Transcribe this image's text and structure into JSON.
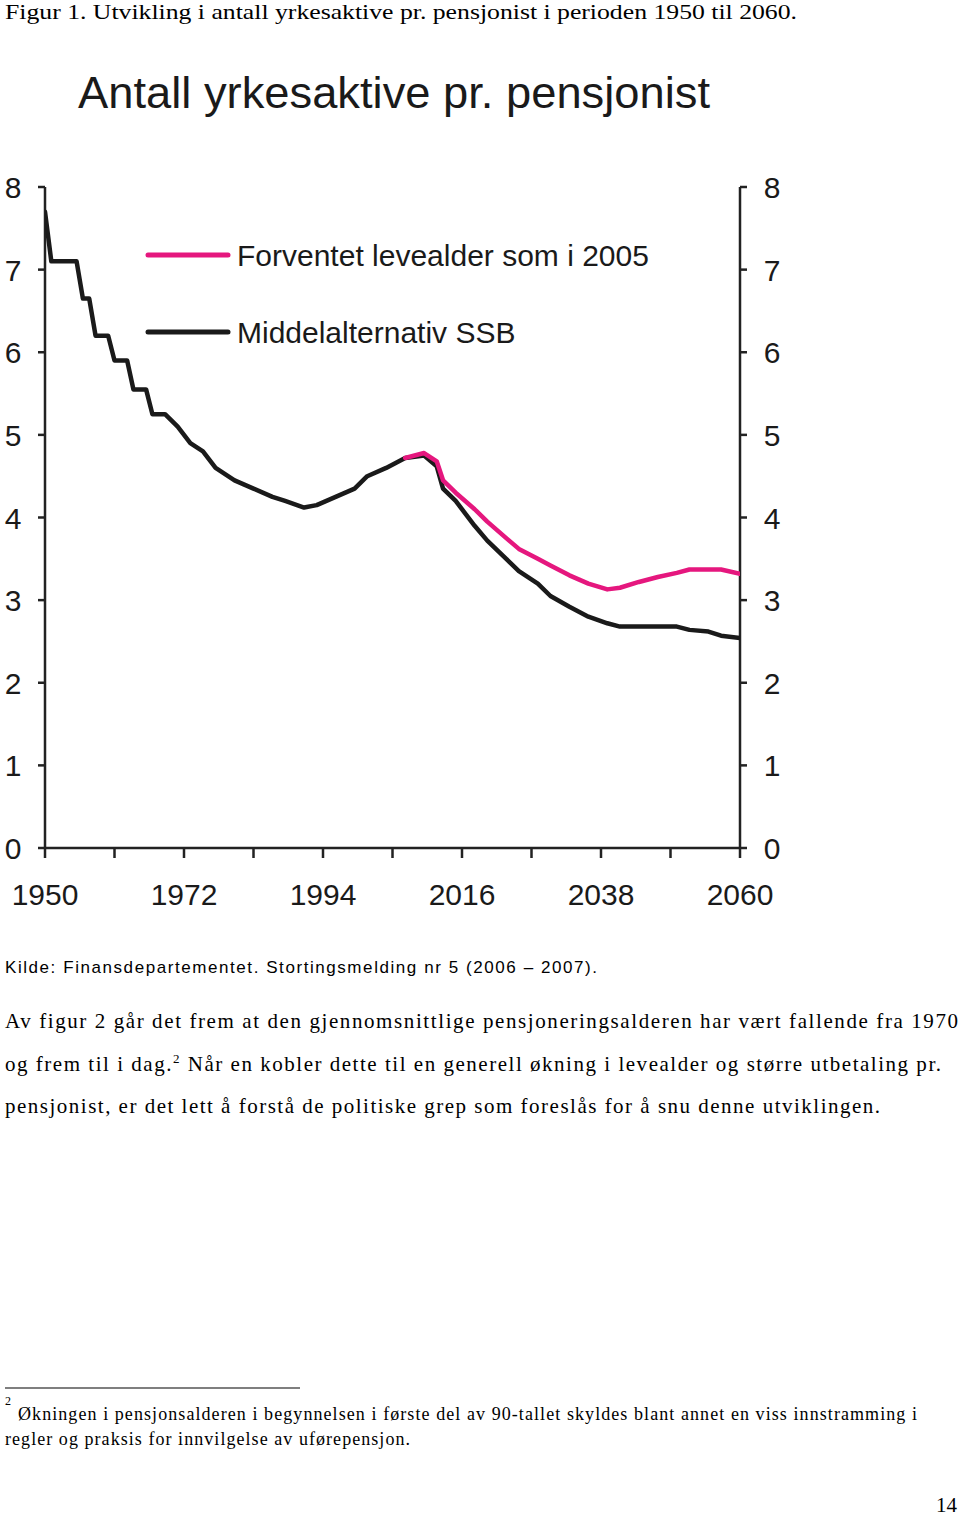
{
  "caption": "Figur 1. Utvikling i antall yrkesaktive pr. pensjonist i perioden 1950 til 2060.",
  "chart_data": {
    "type": "line",
    "title": "Antall yrkesaktive pr. pensjonist",
    "x": [
      1950,
      1951,
      1955,
      1956,
      1957,
      1958,
      1960,
      1961,
      1963,
      1964,
      1966,
      1967,
      1969,
      1971,
      1973,
      1975,
      1977,
      1980,
      1983,
      1986,
      1988,
      1991,
      1993,
      1996,
      1999,
      2001,
      2004,
      2007,
      2010,
      2012,
      2013,
      2015,
      2018,
      2020,
      2023,
      2025,
      2028,
      2030,
      2033,
      2036,
      2039,
      2041,
      2044,
      2047,
      2050,
      2052,
      2055,
      2057,
      2060
    ],
    "series": [
      {
        "name": "Forventet levealder som i 2005",
        "color": "#e5177e",
        "values": [
          null,
          null,
          null,
          null,
          null,
          null,
          null,
          null,
          null,
          null,
          null,
          null,
          null,
          null,
          null,
          null,
          null,
          null,
          null,
          null,
          null,
          null,
          null,
          null,
          null,
          null,
          null,
          4.72,
          4.78,
          4.68,
          4.45,
          4.3,
          4.1,
          3.95,
          3.75,
          3.62,
          3.5,
          3.42,
          3.3,
          3.2,
          3.13,
          3.15,
          3.22,
          3.28,
          3.33,
          3.37,
          3.37,
          3.37,
          3.32
        ]
      },
      {
        "name": "Middelalternativ SSB",
        "color": "#1a1a1a",
        "values": [
          7.7,
          7.1,
          7.1,
          6.65,
          6.65,
          6.2,
          6.2,
          5.9,
          5.9,
          5.55,
          5.55,
          5.25,
          5.25,
          5.1,
          4.9,
          4.8,
          4.6,
          4.45,
          4.35,
          4.25,
          4.2,
          4.12,
          4.15,
          4.25,
          4.35,
          4.5,
          4.6,
          4.72,
          4.75,
          4.62,
          4.35,
          4.2,
          3.9,
          3.72,
          3.5,
          3.35,
          3.2,
          3.05,
          2.92,
          2.8,
          2.72,
          2.68,
          2.68,
          2.68,
          2.68,
          2.64,
          2.62,
          2.57,
          2.54
        ]
      }
    ],
    "xlim": [
      1950,
      2060
    ],
    "ylim": [
      0,
      8
    ],
    "xticks": [
      1950,
      1972,
      1994,
      2016,
      2038,
      2060
    ],
    "yticks": [
      0,
      1,
      2,
      3,
      4,
      5,
      6,
      7,
      8
    ],
    "legend": "top"
  },
  "source": "Kilde: Finansdepartementet. Stortingsmelding nr 5 (2006 – 2007).",
  "paragraph": [
    [
      {
        "text": "Av figur 2 går det frem at den gjennomsnittlige pensjoneringsalderen har vært fallende fra 1970"
      }
    ],
    [
      {
        "text": "og frem til i dag."
      },
      {
        "text": "2",
        "sup": true
      },
      {
        "text": " Når en kobler dette til en generell økning i levealder og større utbetaling pr."
      }
    ],
    [
      {
        "text": "pensjonist, er det lett å forstå de politiske grep som foreslås for å snu denne utviklingen."
      }
    ]
  ],
  "footnote": {
    "marker": "2",
    "lines": [
      "Økningen i pensjonsalderen i begynnelsen i første del av 90-tallet skyldes blant annet en viss innstramming i",
      "regler og praksis for innvilgelse av uførepensjon."
    ]
  },
  "page_number": "14"
}
